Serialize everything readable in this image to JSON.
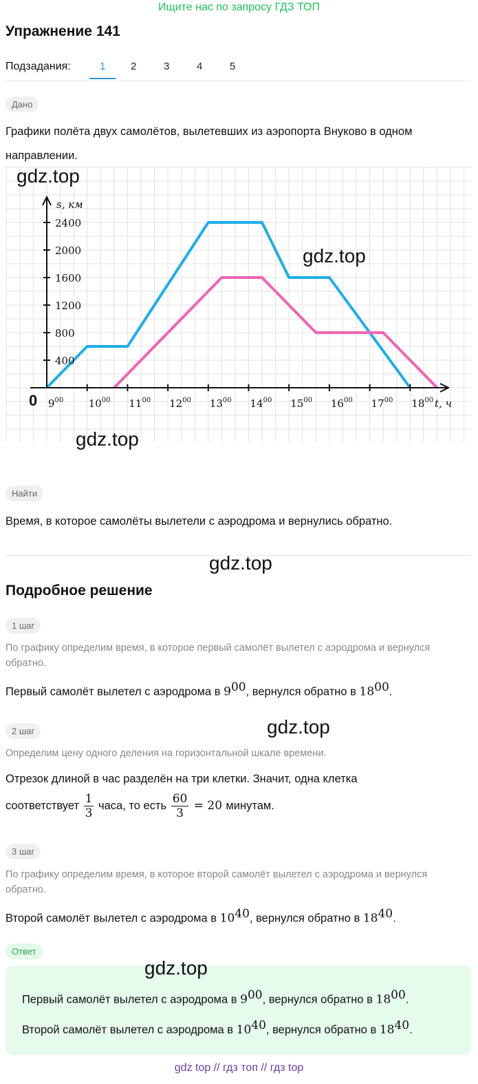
{
  "banner": "Ищите нас по запросу ГДЗ ТОП",
  "title": "Упражнение 141",
  "subtasks": {
    "label": "Подзадания:",
    "items": [
      "1",
      "2",
      "3",
      "4",
      "5"
    ],
    "active": "1"
  },
  "given": {
    "chip": "Дано",
    "text": "Графики полёта двух самолётов, вылетевших из аэропорта Внуково в одном направлении."
  },
  "watermark": "gdz.top",
  "chart_data": {
    "type": "line",
    "xlabel": "t, ч",
    "ylabel": "s, км",
    "origin_label": "0",
    "x_ticks": [
      "9",
      "10",
      "11",
      "12",
      "13",
      "14",
      "15",
      "16",
      "17",
      "18"
    ],
    "x_tick_sup": "00",
    "y_ticks": [
      "400",
      "800",
      "1200",
      "1600",
      "2000",
      "2400"
    ],
    "xlim": [
      9,
      18.667
    ],
    "ylim": [
      0,
      2700
    ],
    "grid": true,
    "series": [
      {
        "color": "#1eaee9",
        "points": [
          [
            9,
            0
          ],
          [
            10,
            600
          ],
          [
            11,
            600
          ],
          [
            13,
            2400
          ],
          [
            14.333,
            2400
          ],
          [
            15,
            1600
          ],
          [
            16,
            1600
          ],
          [
            18,
            0
          ]
        ]
      },
      {
        "color": "#f263b2",
        "points": [
          [
            10.667,
            0
          ],
          [
            13.333,
            1600
          ],
          [
            14.333,
            1600
          ],
          [
            15.667,
            800
          ],
          [
            17.333,
            800
          ],
          [
            18.667,
            0
          ]
        ]
      }
    ]
  },
  "find": {
    "chip": "Найти",
    "text": "Время, в которое самолёты вылетели с аэродрома и вернулись обратно."
  },
  "solution": {
    "title": "Подробное решение",
    "step1": {
      "chip": "1 шаг",
      "hint": "По графику определим время, в которое первый самолёт вылетел с аэродрома и вернулся обратно.",
      "text_a": "Первый самолёт вылетел с аэродрома в ",
      "t1": "9",
      "t1s": "00",
      "text_b": ", вернулся обратно в ",
      "t2": "18",
      "t2s": "00",
      "text_c": "."
    },
    "step2": {
      "chip": "2 шаг",
      "hint": "Определим цену одного деления на горизонтальной шкале времени.",
      "line1": "Отрезок длиной в час разделён на три клетки. Значит, одна клетка",
      "line2_a": "соответствует ",
      "frac1_num": "1",
      "frac1_den": "3",
      "line2_b": " часа, то есть ",
      "frac2_num": "60",
      "frac2_den": "3",
      "eq": " = 20 ",
      "line2_c": "минутам."
    },
    "step3": {
      "chip": "3 шаг",
      "hint": "По графику определим время, в которое второй самолёт вылетел с аэродрома и вернулся обратно.",
      "text_a": "Второй самолёт вылетел с аэродрома в ",
      "t1": "10",
      "t1s": "40",
      "text_b": ", вернулся обратно в ",
      "t2": "18",
      "t2s": "40",
      "text_c": "."
    }
  },
  "answer": {
    "chip": "Ответ",
    "line1_a": "Первый самолёт вылетел с аэродрома в ",
    "l1t1": "9",
    "l1t1s": "00",
    "line1_b": ", вернулся обратно в ",
    "l1t2": "18",
    "l1t2s": "00",
    "line1_c": ".",
    "line2_a": "Второй самолёт вылетел с аэродрома в ",
    "l2t1": "10",
    "l2t1s": "40",
    "line2_b": ", вернулся обратно в ",
    "l2t2": "18",
    "l2t2s": "40",
    "line2_c": "."
  },
  "footer": "gdz top  //  гдз топ  //  гдз top"
}
